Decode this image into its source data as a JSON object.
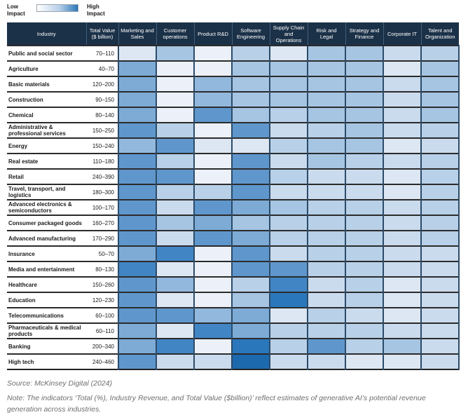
{
  "legend": {
    "low_top": "Low",
    "low_bottom": "Impact",
    "high_top": "High",
    "high_bottom": "Impact"
  },
  "colors": {
    "header_bg": "#1b3148",
    "grid_horizontal": "#2b2b2b",
    "grid_vertical": "#2c4b68"
  },
  "chart_data": {
    "type": "heatmap",
    "legend": {
      "min_label": "Low Impact",
      "max_label": "High Impact",
      "position": "top-left"
    },
    "value_encoding": "cell color intensity, estimated impact level 0 (low) to 10 (high)",
    "impact_colors": [
      "#ecf1f9",
      "#dce7f3",
      "#cadbee",
      "#b8d0e8",
      "#a6c5e2",
      "#93b8dd",
      "#7dabd6",
      "#5f97cd",
      "#4285c4",
      "#2b77bb",
      "#1c69ae"
    ],
    "columns": [
      "Industry",
      "Total Value ($ billion)",
      "Marketing and Sales",
      "Customer operations",
      "Product R&D",
      "Software Engineering",
      "Supply Chain and Operations",
      "Risk and Legal",
      "Strategy and Finance",
      "Corporate IT",
      "Talent and Organization"
    ],
    "rows": [
      {
        "industry": "Public and social sector",
        "total_value": "70–110",
        "impacts": [
          1,
          4,
          0,
          3,
          1,
          4,
          4,
          2,
          3
        ]
      },
      {
        "industry": "Agriculture",
        "total_value": "40–70",
        "impacts": [
          6,
          0,
          0,
          4,
          4,
          4,
          4,
          1,
          4
        ]
      },
      {
        "industry": "Basic materials",
        "total_value": "120–200",
        "impacts": [
          6,
          0,
          5,
          4,
          4,
          4,
          4,
          2,
          4
        ]
      },
      {
        "industry": "Construction",
        "total_value": "90–150",
        "impacts": [
          6,
          0,
          5,
          4,
          4,
          4,
          4,
          2,
          4
        ]
      },
      {
        "industry": "Chemical",
        "total_value": "80–140",
        "impacts": [
          6,
          0,
          7,
          4,
          3,
          4,
          4,
          2,
          4
        ]
      },
      {
        "industry": "Administrative & professional services",
        "total_value": "150–250",
        "impacts": [
          7,
          3,
          0,
          7,
          2,
          3,
          4,
          2,
          3
        ]
      },
      {
        "industry": "Energy",
        "total_value": "150–240",
        "impacts": [
          5,
          7,
          1,
          1,
          3,
          4,
          4,
          1,
          2
        ]
      },
      {
        "industry": "Real estate",
        "total_value": "110–180",
        "impacts": [
          7,
          3,
          0,
          7,
          2,
          4,
          3,
          2,
          3
        ]
      },
      {
        "industry": "Retail",
        "total_value": "240–390",
        "impacts": [
          7,
          7,
          0,
          7,
          3,
          2,
          2,
          1,
          3
        ]
      },
      {
        "industry": "Travel, transport, and logistics",
        "total_value": "180–300",
        "impacts": [
          7,
          3,
          3,
          7,
          2,
          2,
          2,
          1,
          3
        ]
      },
      {
        "industry": "Advanced electronics & semiconductors",
        "total_value": "100–170",
        "impacts": [
          7,
          2,
          7,
          6,
          4,
          3,
          3,
          2,
          3
        ]
      },
      {
        "industry": "Consumer packaged goods",
        "total_value": "160–270",
        "impacts": [
          7,
          4,
          6,
          4,
          3,
          3,
          3,
          2,
          3
        ]
      },
      {
        "industry": "Advanced manufacturing",
        "total_value": "170–290",
        "impacts": [
          7,
          2,
          7,
          6,
          3,
          3,
          3,
          2,
          3
        ]
      },
      {
        "industry": "Insurance",
        "total_value": "50–70",
        "impacts": [
          6,
          8,
          0,
          7,
          2,
          3,
          3,
          2,
          2
        ]
      },
      {
        "industry": "Media and entertainment",
        "total_value": "80–130",
        "impacts": [
          8,
          1,
          0,
          7,
          7,
          3,
          3,
          2,
          2
        ]
      },
      {
        "industry": "Healthcare",
        "total_value": "150–260",
        "impacts": [
          7,
          5,
          0,
          3,
          8,
          2,
          3,
          1,
          2
        ]
      },
      {
        "industry": "Education",
        "total_value": "120–230",
        "impacts": [
          7,
          1,
          0,
          4,
          9,
          2,
          3,
          1,
          2
        ]
      },
      {
        "industry": "Telecommunications",
        "total_value": "60–100",
        "impacts": [
          7,
          7,
          5,
          6,
          1,
          3,
          2,
          1,
          2
        ]
      },
      {
        "industry": "Pharmaceuticals & medical products",
        "total_value": "60–110",
        "impacts": [
          6,
          1,
          8,
          6,
          3,
          3,
          3,
          2,
          2
        ]
      },
      {
        "industry": "Banking",
        "total_value": "200–340",
        "impacts": [
          6,
          8,
          0,
          9,
          3,
          7,
          3,
          4,
          2
        ]
      },
      {
        "industry": "High tech",
        "total_value": "240–460",
        "impacts": [
          7,
          2,
          2,
          10,
          2,
          2,
          1,
          1,
          2
        ]
      }
    ]
  },
  "footer": {
    "source": "Source: McKinsey Digital (2024)",
    "note": "Note: The indicators ‘Total (%), Industry Revenue, and Total Value ($billion)’ reflect estimates of generative AI’s potential revenue generation across industries."
  }
}
